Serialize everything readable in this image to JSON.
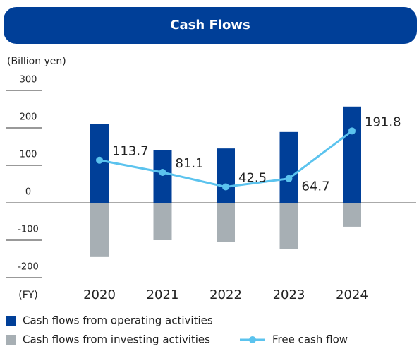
{
  "chart_data": {
    "type": "bar",
    "title": "Cash Flows",
    "y_label": "(Billion yen)",
    "x_label": "(FY)",
    "categories": [
      "2020",
      "2021",
      "2022",
      "2023",
      "2024"
    ],
    "series": [
      {
        "name": "Cash flows from operating activities",
        "color": "#003f98",
        "type": "bar",
        "values": [
          211,
          140,
          145,
          189,
          257
        ]
      },
      {
        "name": "Cash flows from investing activities",
        "color": "#a7afb4",
        "type": "bar",
        "values": [
          -145,
          -100,
          -104,
          -123,
          -64
        ]
      },
      {
        "name": "Free cash flow",
        "color": "#5bc3ee",
        "type": "line",
        "values": [
          113.7,
          81.1,
          42.5,
          64.7,
          191.8
        ]
      }
    ],
    "ylim": [
      -200,
      300
    ],
    "yticks": [
      300,
      200,
      100,
      0,
      -100,
      -200
    ]
  }
}
